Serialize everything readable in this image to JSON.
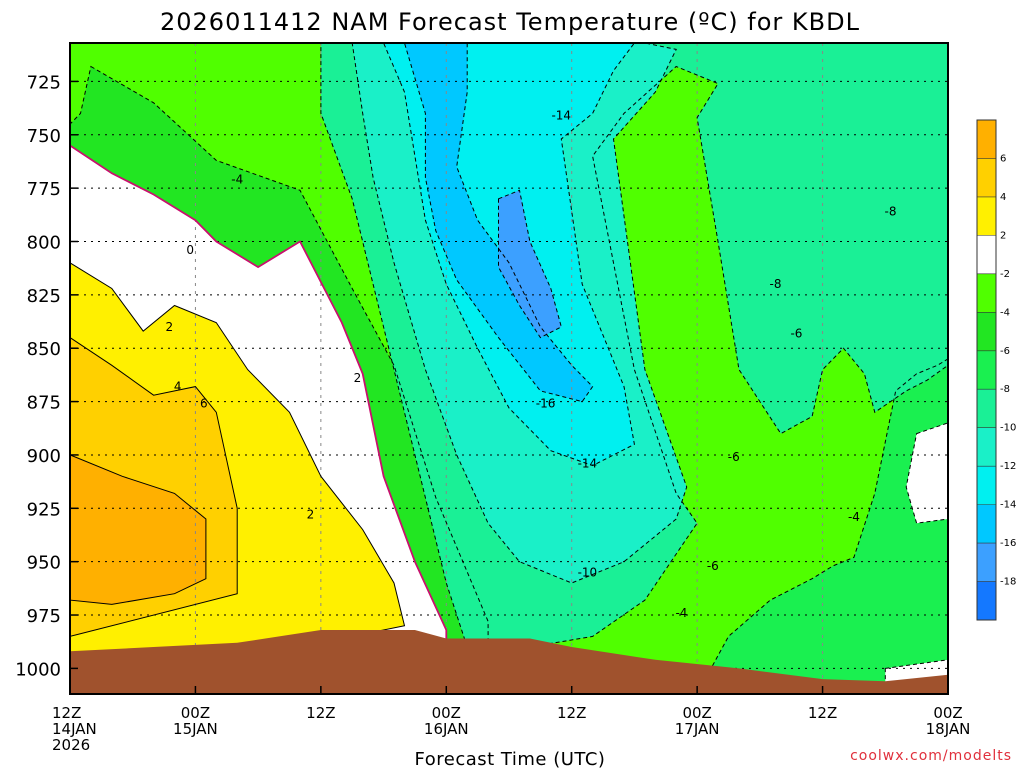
{
  "chart_data": {
    "type": "heatmap",
    "title": "2026011412 NAM Forecast Temperature (ºC) for KBDL",
    "xlabel": "Forecast Time (UTC)",
    "ylabel": "",
    "y_axis": {
      "ticks": [
        725,
        750,
        775,
        800,
        825,
        850,
        875,
        900,
        925,
        950,
        975,
        1000
      ],
      "range": [
        1012,
        707
      ],
      "unit": "hPa"
    },
    "x_axis": {
      "range_hours": [
        0,
        84
      ],
      "ticks": [
        {
          "hour": 0,
          "line1": "12Z",
          "line2": "14JAN",
          "line3": "2026"
        },
        {
          "hour": 12,
          "line1": "00Z",
          "line2": "15JAN",
          "line3": ""
        },
        {
          "hour": 24,
          "line1": "12Z",
          "line2": "",
          "line3": ""
        },
        {
          "hour": 36,
          "line1": "00Z",
          "line2": "16JAN",
          "line3": ""
        },
        {
          "hour": 48,
          "line1": "12Z",
          "line2": "",
          "line3": ""
        },
        {
          "hour": 60,
          "line1": "00Z",
          "line2": "17JAN",
          "line3": ""
        },
        {
          "hour": 72,
          "line1": "12Z",
          "line2": "",
          "line3": ""
        },
        {
          "hour": 84,
          "line1": "00Z",
          "line2": "18JAN",
          "line3": ""
        }
      ]
    },
    "colorbar": {
      "bins": [
        {
          "min": 6,
          "max": 8,
          "color": "#FFB000"
        },
        {
          "min": 4,
          "max": 6,
          "color": "#FFD000"
        },
        {
          "min": 2,
          "max": 4,
          "color": "#FFF000"
        },
        {
          "min": -2,
          "max": 2,
          "color": "#FFFFFF"
        },
        {
          "min": -4,
          "max": -2,
          "color": "#50FF00"
        },
        {
          "min": -6,
          "max": -4,
          "color": "#22E622"
        },
        {
          "min": -8,
          "max": -6,
          "color": "#1AF050"
        },
        {
          "min": -10,
          "max": -8,
          "color": "#1AF096"
        },
        {
          "min": -12,
          "max": -10,
          "color": "#1AF0C8"
        },
        {
          "min": -14,
          "max": -12,
          "color": "#00F0F0"
        },
        {
          "min": -16,
          "max": -14,
          "color": "#00C8FF"
        },
        {
          "min": -18,
          "max": -16,
          "color": "#3CA0FF"
        },
        {
          "min": -20,
          "max": -18,
          "color": "#1478FF"
        }
      ],
      "tick_labels": [
        "6",
        "4",
        "2",
        "-2",
        "-4",
        "-6",
        "-8",
        "-10",
        "-12",
        "-14",
        "-16",
        "-18"
      ]
    },
    "surface_color": "#A0522D",
    "surface_pressure": [
      {
        "hour": 0,
        "p": 992
      },
      {
        "hour": 8,
        "p": 990
      },
      {
        "hour": 16,
        "p": 988
      },
      {
        "hour": 24,
        "p": 982
      },
      {
        "hour": 33,
        "p": 982
      },
      {
        "hour": 36,
        "p": 986
      },
      {
        "hour": 44,
        "p": 986
      },
      {
        "hour": 48,
        "p": 990
      },
      {
        "hour": 56,
        "p": 996
      },
      {
        "hour": 64,
        "p": 1000
      },
      {
        "hour": 72,
        "p": 1005
      },
      {
        "hour": 78,
        "p": 1006
      },
      {
        "hour": 84,
        "p": 1003
      }
    ],
    "temperature_regions": [
      {
        "value": -3,
        "poly": [
          [
            0,
            707
          ],
          [
            84,
            707
          ],
          [
            84,
            1012
          ],
          [
            0,
            1012
          ]
        ]
      },
      {
        "value": -5,
        "poly": [
          [
            2,
            718
          ],
          [
            8,
            735
          ],
          [
            14,
            762
          ],
          [
            22,
            776
          ],
          [
            27,
            822
          ],
          [
            31,
            858
          ],
          [
            35,
            920
          ],
          [
            40,
            978
          ],
          [
            40,
            1012
          ],
          [
            0,
            1012
          ],
          [
            0,
            745
          ],
          [
            1,
            740
          ]
        ]
      },
      {
        "value": -7,
        "poly": [
          [
            22,
            707
          ],
          [
            84,
            707
          ],
          [
            84,
            1012
          ],
          [
            60,
            1012
          ],
          [
            63,
            985
          ],
          [
            67,
            968
          ],
          [
            71,
            958
          ],
          [
            73,
            952
          ],
          [
            75,
            948
          ],
          [
            77,
            918
          ],
          [
            79,
            870
          ],
          [
            81,
            862
          ],
          [
            83,
            858
          ],
          [
            84,
            855
          ],
          [
            84,
            707
          ]
        ]
      },
      {
        "value": -9,
        "poly": [
          [
            24,
            707
          ],
          [
            84,
            707
          ],
          [
            84,
            858
          ],
          [
            82,
            865
          ],
          [
            80,
            870
          ],
          [
            77,
            880
          ],
          [
            76,
            862
          ],
          [
            74,
            850
          ],
          [
            72,
            860
          ],
          [
            71,
            882
          ],
          [
            68,
            890
          ],
          [
            64,
            860
          ],
          [
            62,
            800
          ],
          [
            60,
            742
          ],
          [
            62,
            726
          ],
          [
            58,
            718
          ],
          [
            53,
            740
          ],
          [
            50,
            760
          ],
          [
            54,
            860
          ],
          [
            58,
            918
          ],
          [
            60,
            932
          ],
          [
            55,
            968
          ],
          [
            50,
            985
          ],
          [
            44,
            990
          ],
          [
            42,
            1012
          ],
          [
            40,
            1012
          ],
          [
            38,
            990
          ],
          [
            36,
            960
          ],
          [
            33,
            900
          ],
          [
            31,
            860
          ],
          [
            29,
            820
          ],
          [
            27,
            780
          ],
          [
            24,
            740
          ]
        ]
      },
      {
        "value": -11,
        "poly": [
          [
            27,
            707
          ],
          [
            55,
            707
          ],
          [
            58,
            710
          ],
          [
            56,
            730
          ],
          [
            52,
            752
          ],
          [
            55,
            860
          ],
          [
            59,
            915
          ],
          [
            58,
            930
          ],
          [
            53,
            950
          ],
          [
            48,
            960
          ],
          [
            43,
            950
          ],
          [
            40,
            932
          ],
          [
            37,
            900
          ],
          [
            34,
            860
          ],
          [
            31,
            810
          ],
          [
            29,
            770
          ],
          [
            28,
            740
          ]
        ]
      },
      {
        "value": -13,
        "poly": [
          [
            30,
            707
          ],
          [
            54,
            707
          ],
          [
            52,
            720
          ],
          [
            50,
            740
          ],
          [
            47,
            752
          ],
          [
            49,
            820
          ],
          [
            53,
            868
          ],
          [
            54,
            895
          ],
          [
            50,
            905
          ],
          [
            46,
            898
          ],
          [
            42,
            878
          ],
          [
            39,
            850
          ],
          [
            36,
            820
          ],
          [
            34,
            790
          ],
          [
            33,
            760
          ],
          [
            32,
            730
          ]
        ]
      },
      {
        "value": -15,
        "poly": [
          [
            32,
            707
          ],
          [
            38,
            707
          ],
          [
            38,
            730
          ],
          [
            37,
            765
          ],
          [
            39,
            790
          ],
          [
            42,
            810
          ],
          [
            45,
            840
          ],
          [
            48,
            858
          ],
          [
            50,
            868
          ],
          [
            49,
            875
          ],
          [
            45,
            870
          ],
          [
            41,
            845
          ],
          [
            37,
            818
          ],
          [
            35,
            795
          ],
          [
            34,
            770
          ],
          [
            34,
            740
          ]
        ]
      },
      {
        "value": -17,
        "poly": [
          [
            41,
            780
          ],
          [
            43,
            776
          ],
          [
            44,
            800
          ],
          [
            46,
            822
          ],
          [
            47,
            840
          ],
          [
            45,
            845
          ],
          [
            43,
            830
          ],
          [
            41,
            812
          ]
        ]
      },
      {
        "value": 0,
        "poly": [
          [
            0,
            755
          ],
          [
            4,
            768
          ],
          [
            8,
            778
          ],
          [
            12,
            790
          ],
          [
            14,
            800
          ],
          [
            18,
            812
          ],
          [
            22,
            800
          ],
          [
            26,
            838
          ],
          [
            28,
            862
          ],
          [
            30,
            910
          ],
          [
            33,
            950
          ],
          [
            36,
            982
          ],
          [
            36,
            1012
          ],
          [
            0,
            1012
          ]
        ]
      },
      {
        "value": 3,
        "poly": [
          [
            0,
            810
          ],
          [
            4,
            822
          ],
          [
            7,
            842
          ],
          [
            10,
            830
          ],
          [
            14,
            838
          ],
          [
            17,
            860
          ],
          [
            21,
            880
          ],
          [
            24,
            910
          ],
          [
            28,
            935
          ],
          [
            31,
            960
          ],
          [
            32,
            980
          ],
          [
            0,
            1012
          ]
        ]
      },
      {
        "value": 5,
        "poly": [
          [
            0,
            845
          ],
          [
            4,
            858
          ],
          [
            8,
            872
          ],
          [
            12,
            868
          ],
          [
            14,
            880
          ],
          [
            16,
            925
          ],
          [
            16,
            965
          ],
          [
            0,
            985
          ]
        ]
      },
      {
        "value": 7,
        "poly": [
          [
            0,
            900
          ],
          [
            5,
            910
          ],
          [
            10,
            918
          ],
          [
            13,
            930
          ],
          [
            13,
            958
          ],
          [
            10,
            965
          ],
          [
            4,
            970
          ],
          [
            0,
            968
          ]
        ]
      },
      {
        "value": -1,
        "poly": [
          [
            81,
            890
          ],
          [
            84,
            885
          ],
          [
            84,
            930
          ],
          [
            81,
            932
          ],
          [
            80,
            915
          ]
        ]
      },
      {
        "value": -1,
        "poly": [
          [
            78,
            1000
          ],
          [
            84,
            996
          ],
          [
            84,
            1012
          ],
          [
            78,
            1012
          ]
        ]
      }
    ],
    "contour_labels": [
      {
        "text": "-4",
        "hour": 16,
        "p": 771
      },
      {
        "text": "-14",
        "hour": 47,
        "p": 741
      },
      {
        "text": "-8",
        "hour": 78.5,
        "p": 786
      },
      {
        "text": "0",
        "hour": 11.5,
        "p": 804
      },
      {
        "text": "-8",
        "hour": 67.5,
        "p": 820
      },
      {
        "text": "2",
        "hour": 9.5,
        "p": 840
      },
      {
        "text": "-6",
        "hour": 69.5,
        "p": 843
      },
      {
        "text": "2",
        "hour": 27.5,
        "p": 864
      },
      {
        "text": "4",
        "hour": 10.3,
        "p": 868
      },
      {
        "text": "6",
        "hour": 12.8,
        "p": 876
      },
      {
        "text": "-16",
        "hour": 45.5,
        "p": 876
      },
      {
        "text": "-6",
        "hour": 63.5,
        "p": 901
      },
      {
        "text": "-14",
        "hour": 49.5,
        "p": 904
      },
      {
        "text": "2",
        "hour": 23,
        "p": 928
      },
      {
        "text": "-4",
        "hour": 75,
        "p": 929
      },
      {
        "text": "-6",
        "hour": 61.5,
        "p": 952
      },
      {
        "text": "-10",
        "hour": 49.5,
        "p": 955
      },
      {
        "text": "-4",
        "hour": 58.5,
        "p": 974
      }
    ]
  },
  "credit": "coolwx.com/modelts",
  "colors": {
    "isotherm_zero": "#C8106E",
    "contour": "#000000"
  }
}
